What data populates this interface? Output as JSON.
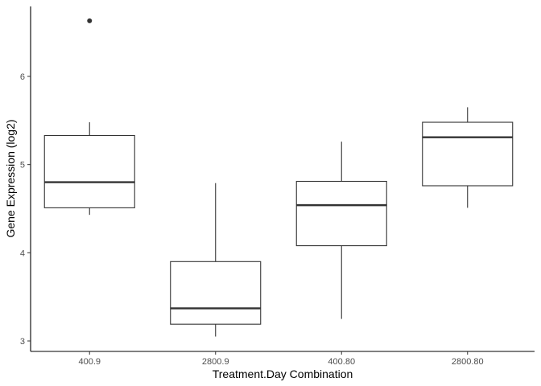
{
  "chart_data": {
    "type": "boxplot",
    "xlabel": "Treatment.Day Combination",
    "ylabel": "Gene Expression (log2)",
    "ylim": [
      2.9,
      6.8
    ],
    "yticks": [
      3,
      4,
      5,
      6
    ],
    "categories": [
      "400.9",
      "2800.9",
      "400.80",
      "2800.80"
    ],
    "boxes": [
      {
        "category": "400.9",
        "whisker_low": 4.43,
        "q1": 4.51,
        "median": 4.8,
        "q3": 5.33,
        "whisker_high": 5.48,
        "outliers": [
          6.63
        ]
      },
      {
        "category": "2800.9",
        "whisker_low": 3.05,
        "q1": 3.19,
        "median": 3.37,
        "q3": 3.9,
        "whisker_high": 4.79,
        "outliers": []
      },
      {
        "category": "400.80",
        "whisker_low": 3.25,
        "q1": 4.08,
        "median": 4.54,
        "q3": 4.81,
        "whisker_high": 5.26,
        "outliers": []
      },
      {
        "category": "2800.80",
        "whisker_low": 4.51,
        "q1": 4.76,
        "median": 5.31,
        "q3": 5.48,
        "whisker_high": 5.65,
        "outliers": []
      }
    ],
    "colors": {
      "box_fill": "#ffffff",
      "box_stroke": "#333333",
      "outlier": "#333333",
      "axis": "#000000"
    },
    "grid": false,
    "legend": "none"
  }
}
